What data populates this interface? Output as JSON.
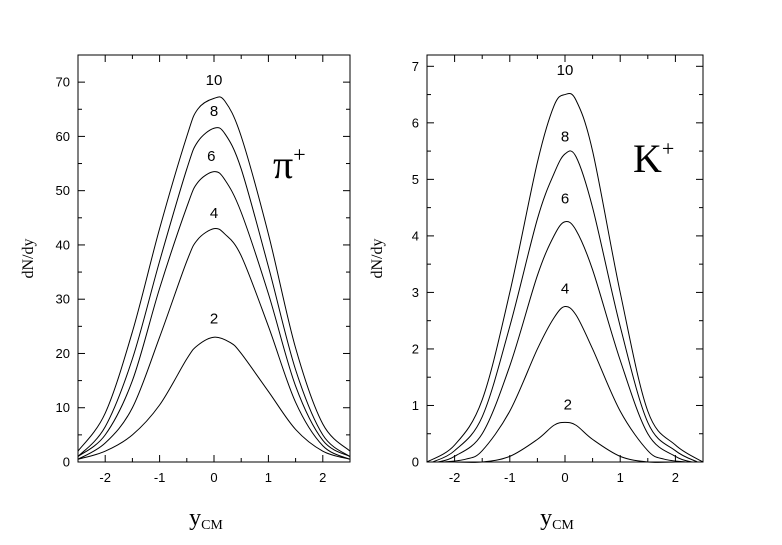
{
  "chart_data": [
    {
      "type": "line",
      "particle": "π",
      "particle_superscript": "+",
      "xlabel_main": "y",
      "xlabel_sub": "CM",
      "ylabel": "dN/dy",
      "xlim": [
        -2.5,
        2.5
      ],
      "ylim": [
        0,
        75
      ],
      "xticks": [
        -2,
        -1,
        0,
        1,
        2
      ],
      "yticks": [
        0,
        10,
        20,
        30,
        40,
        50,
        60,
        70
      ],
      "series": [
        {
          "label": "2",
          "label_pos": [
            0.0,
            25.5
          ],
          "x": [
            -2.5,
            -2.0,
            -1.5,
            -1.0,
            -0.5,
            -0.3,
            0.0,
            0.3,
            0.5,
            1.0,
            1.5,
            2.0,
            2.5
          ],
          "y": [
            0.5,
            2.0,
            5.0,
            10.5,
            19.0,
            21.5,
            23.0,
            22.0,
            20.0,
            13.0,
            6.0,
            2.0,
            0.5
          ]
        },
        {
          "label": "4",
          "label_pos": [
            0.0,
            45.0
          ],
          "x": [
            -2.5,
            -2.0,
            -1.5,
            -1.0,
            -0.5,
            -0.3,
            0.0,
            0.2,
            0.5,
            1.0,
            1.5,
            2.0,
            2.5
          ],
          "y": [
            0.5,
            3.5,
            10.0,
            23.0,
            37.0,
            41.0,
            43.0,
            42.0,
            38.0,
            25.0,
            11.0,
            3.0,
            0.5
          ]
        },
        {
          "label": "6",
          "label_pos": [
            -0.05,
            55.5
          ],
          "x": [
            -2.5,
            -2.0,
            -1.5,
            -1.0,
            -0.5,
            -0.3,
            0.0,
            0.2,
            0.5,
            1.0,
            1.5,
            2.0,
            2.5
          ],
          "y": [
            1.0,
            5.0,
            15.0,
            32.0,
            47.0,
            51.5,
            53.5,
            52.0,
            46.0,
            31.0,
            14.0,
            4.0,
            1.0
          ]
        },
        {
          "label": "8",
          "label_pos": [
            0.0,
            63.8
          ],
          "x": [
            -2.5,
            -2.0,
            -1.5,
            -1.0,
            -0.5,
            -0.3,
            0.0,
            0.2,
            0.5,
            1.0,
            1.5,
            2.0,
            2.5
          ],
          "y": [
            1.0,
            6.5,
            19.0,
            37.0,
            54.0,
            59.0,
            61.5,
            60.5,
            54.0,
            36.0,
            17.0,
            5.0,
            1.0
          ]
        },
        {
          "label": "10",
          "label_pos": [
            0.0,
            69.5
          ],
          "x": [
            -2.5,
            -2.0,
            -1.5,
            -1.0,
            -0.5,
            -0.3,
            0.0,
            0.2,
            0.5,
            1.0,
            1.5,
            2.0,
            2.5
          ],
          "y": [
            2.0,
            9.0,
            24.0,
            43.0,
            60.0,
            65.0,
            67.0,
            66.5,
            60.0,
            42.0,
            21.0,
            7.0,
            2.0
          ]
        }
      ]
    },
    {
      "type": "line",
      "particle": "K",
      "particle_superscript": "+",
      "xlabel_main": "y",
      "xlabel_sub": "CM",
      "ylabel": "dN/dy",
      "xlim": [
        -2.5,
        2.5
      ],
      "ylim": [
        0,
        7.2
      ],
      "xticks": [
        -2,
        -1,
        0,
        1,
        2
      ],
      "yticks": [
        0,
        1,
        2,
        3,
        4,
        5,
        6,
        7
      ],
      "series": [
        {
          "label": "2",
          "label_pos": [
            0.05,
            0.93
          ],
          "x": [
            -2.0,
            -1.5,
            -1.0,
            -0.5,
            -0.2,
            0.0,
            0.2,
            0.5,
            1.0,
            1.5,
            2.0
          ],
          "y": [
            0.0,
            0.0,
            0.1,
            0.4,
            0.65,
            0.7,
            0.65,
            0.4,
            0.1,
            0.0,
            0.0
          ]
        },
        {
          "label": "4",
          "label_pos": [
            0.0,
            2.98
          ],
          "x": [
            -2.2,
            -1.8,
            -1.5,
            -1.0,
            -0.5,
            -0.2,
            0.0,
            0.2,
            0.5,
            1.0,
            1.5,
            1.8,
            2.2
          ],
          "y": [
            0.0,
            0.05,
            0.2,
            0.9,
            2.0,
            2.55,
            2.75,
            2.6,
            2.0,
            0.9,
            0.2,
            0.05,
            0.0
          ]
        },
        {
          "label": "6",
          "label_pos": [
            0.0,
            4.57
          ],
          "x": [
            -2.3,
            -2.0,
            -1.5,
            -1.0,
            -0.5,
            -0.2,
            0.0,
            0.2,
            0.5,
            1.0,
            1.5,
            2.0,
            2.3
          ],
          "y": [
            0.0,
            0.1,
            0.5,
            1.7,
            3.3,
            4.0,
            4.25,
            4.1,
            3.4,
            1.8,
            0.5,
            0.1,
            0.0
          ]
        },
        {
          "label": "8",
          "label_pos": [
            0.0,
            5.67
          ],
          "x": [
            -2.4,
            -2.0,
            -1.5,
            -1.0,
            -0.5,
            -0.2,
            0.0,
            0.2,
            0.5,
            1.0,
            1.5,
            2.0,
            2.4
          ],
          "y": [
            0.0,
            0.2,
            0.8,
            2.4,
            4.3,
            5.1,
            5.45,
            5.4,
            4.5,
            2.4,
            0.7,
            0.2,
            0.0
          ]
        },
        {
          "label": "10",
          "label_pos": [
            0.0,
            6.85
          ],
          "x": [
            -2.5,
            -2.0,
            -1.5,
            -1.0,
            -0.5,
            -0.2,
            0.0,
            0.2,
            0.5,
            1.0,
            1.5,
            2.0,
            2.5
          ],
          "y": [
            0.0,
            0.3,
            1.1,
            3.0,
            5.3,
            6.3,
            6.5,
            6.4,
            5.5,
            3.0,
            0.9,
            0.3,
            0.0
          ]
        }
      ]
    }
  ]
}
